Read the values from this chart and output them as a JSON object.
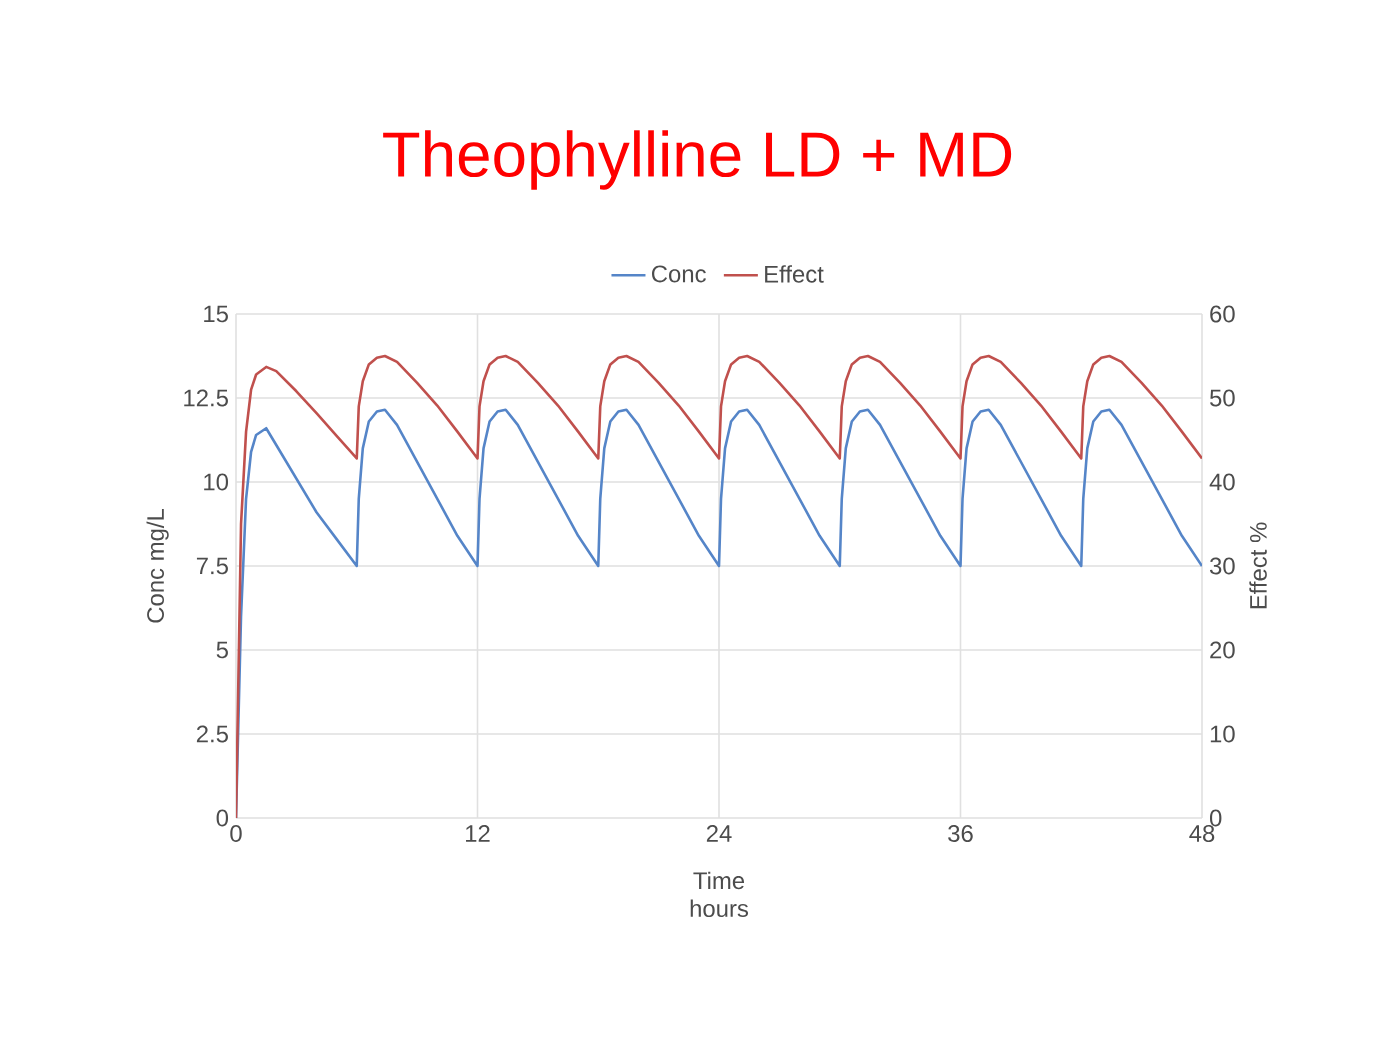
{
  "chart_data": {
    "type": "line",
    "title": "Theophylline LD + MD",
    "xlabel": "Time hours",
    "ylabel": "Conc mg/L",
    "y2label": "Effect %",
    "x": [
      0,
      0.25,
      0.5,
      0.75,
      1,
      1.5,
      2,
      3,
      4,
      5,
      6,
      6.1,
      6.3,
      6.6,
      7,
      7.4,
      8,
      9,
      10,
      11,
      12,
      12.1,
      12.3,
      12.6,
      13,
      13.4,
      14,
      15,
      16,
      17,
      18,
      18.1,
      18.3,
      18.6,
      19,
      19.4,
      20,
      21,
      22,
      23,
      24,
      24.1,
      24.3,
      24.6,
      25,
      25.4,
      26,
      27,
      28,
      29,
      30,
      30.1,
      30.3,
      30.6,
      31,
      31.4,
      32,
      33,
      34,
      35,
      36,
      36.1,
      36.3,
      36.6,
      37,
      37.4,
      38,
      39,
      40,
      41,
      42,
      42.1,
      42.3,
      42.6,
      43,
      43.4,
      44,
      45,
      46,
      47,
      48
    ],
    "series": [
      {
        "name": "Conc",
        "color": "#5585c8",
        "values": [
          0,
          6,
          9.5,
          10.9,
          11.4,
          11.6,
          11.1,
          10.1,
          9.1,
          8.3,
          7.5,
          9.5,
          11,
          11.8,
          12.1,
          12.15,
          11.7,
          10.6,
          9.5,
          8.4,
          7.5,
          9.5,
          11,
          11.8,
          12.1,
          12.15,
          11.7,
          10.6,
          9.5,
          8.4,
          7.5,
          9.5,
          11,
          11.8,
          12.1,
          12.15,
          11.7,
          10.6,
          9.5,
          8.4,
          7.5,
          9.5,
          11,
          11.8,
          12.1,
          12.15,
          11.7,
          10.6,
          9.5,
          8.4,
          7.5,
          9.5,
          11,
          11.8,
          12.1,
          12.15,
          11.7,
          10.6,
          9.5,
          8.4,
          7.5,
          9.5,
          11,
          11.8,
          12.1,
          12.15,
          11.7,
          10.6,
          9.5,
          8.4,
          7.5,
          9.5,
          11,
          11.8,
          12.1,
          12.15,
          11.7,
          10.6,
          9.5,
          8.4,
          7.5
        ]
      },
      {
        "name": "Effect",
        "color": "#c0504d",
        "axis": "y2",
        "values": [
          0,
          35,
          46,
          51,
          52.8,
          53.7,
          53.2,
          50.8,
          48.2,
          45.5,
          42.8,
          49,
          52,
          54,
          54.8,
          55,
          54.3,
          51.8,
          49.1,
          46,
          42.8,
          49,
          52,
          54,
          54.8,
          55,
          54.3,
          51.8,
          49.1,
          46,
          42.8,
          49,
          52,
          54,
          54.8,
          55,
          54.3,
          51.8,
          49.1,
          46,
          42.8,
          49,
          52,
          54,
          54.8,
          55,
          54.3,
          51.8,
          49.1,
          46,
          42.8,
          49,
          52,
          54,
          54.8,
          55,
          54.3,
          51.8,
          49.1,
          46,
          42.8,
          49,
          52,
          54,
          54.8,
          55,
          54.3,
          51.8,
          49.1,
          46,
          42.8,
          49,
          52,
          54,
          54.8,
          55,
          54.3,
          51.8,
          49.1,
          46,
          42.8
        ]
      }
    ],
    "xlim": [
      0,
      48
    ],
    "xticks": [
      0,
      12,
      24,
      36,
      48
    ],
    "ylim": [
      0,
      15
    ],
    "yticks": [
      0,
      2.5,
      5,
      7.5,
      10,
      12.5,
      15
    ],
    "y2lim": [
      0,
      60
    ],
    "y2ticks": [
      0,
      10,
      20,
      30,
      40,
      50,
      60
    ],
    "grid": true,
    "legend": "top",
    "marker": "none",
    "line_style": "solid"
  }
}
